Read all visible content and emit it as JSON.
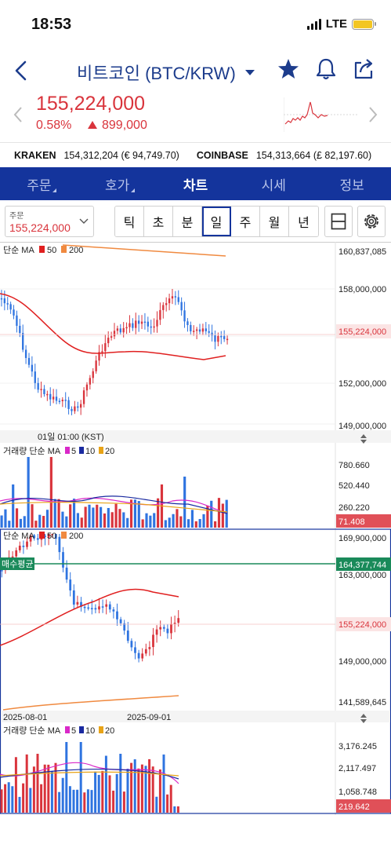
{
  "status": {
    "time": "18:53",
    "network": "LTE"
  },
  "nav": {
    "title": "비트코인 (BTC/KRW)"
  },
  "price": {
    "current": "155,224,000",
    "change_pct": "0.58%",
    "change_amt": "899,000"
  },
  "exchanges": [
    {
      "name": "KRAKEN",
      "value": "154,312,204 (€ 94,749.70)"
    },
    {
      "name": "COINBASE",
      "value": "154,313,664 (£ 82,197.60)"
    }
  ],
  "tabs": [
    "주문",
    "호가",
    "차트",
    "시세",
    "정보"
  ],
  "active_tab": "차트",
  "order": {
    "label": "주문",
    "value": "155,224,000"
  },
  "periods": [
    "틱",
    "초",
    "분",
    "일",
    "주",
    "월",
    "년"
  ],
  "active_period": "일",
  "chart1": {
    "legend": {
      "prefix": "단순 MA",
      "ma1": "50",
      "ma2": "200"
    },
    "y_labels": [
      "160,837,085",
      "158,000,000",
      "152,000,000",
      "149,000,000"
    ],
    "current_price_label": "155,224,000",
    "x_label": "01일 01:00 (KST)"
  },
  "volume1": {
    "legend": {
      "prefix": "거래량 단순 MA",
      "ma1": "5",
      "ma2": "10",
      "ma3": "20"
    },
    "y_labels": [
      "780.660",
      "520.440",
      "260.220"
    ],
    "current_label": "71.408"
  },
  "chart2": {
    "legend": {
      "prefix": "단순 MA",
      "ma1": "50",
      "ma2": "200"
    },
    "avg_buy_label": "매수평균",
    "avg_buy_value": "164,377,744",
    "y_labels": [
      "169,900,000",
      "163,000,000",
      "149,000,000",
      "141,589,645"
    ],
    "current_price_label": "155,224,000",
    "x_labels": [
      "2025-08-01",
      "2025-09-01"
    ]
  },
  "volume2": {
    "legend": {
      "prefix": "거래량 단순 MA",
      "ma1": "5",
      "ma2": "10",
      "ma3": "20"
    },
    "y_labels": [
      "3,176.245",
      "2,117.497",
      "1,058.748"
    ],
    "current_label": "219.642"
  },
  "colors": {
    "up": "#d9343c",
    "down": "#2f74e0",
    "brand": "#14349c",
    "ma50": "#e02020",
    "ma200": "#f08a40",
    "avg_buy": "#1a8a5a"
  }
}
